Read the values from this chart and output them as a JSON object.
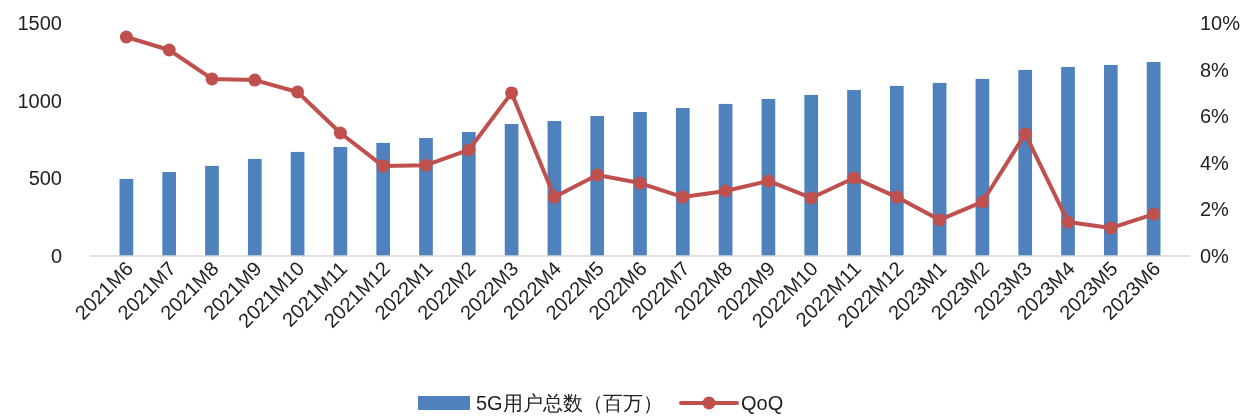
{
  "chart_data": {
    "type": "bar",
    "categories": [
      "2021M6",
      "2021M7",
      "2021M8",
      "2021M9",
      "2021M10",
      "2021M11",
      "2021M12",
      "2022M1",
      "2022M2",
      "2022M3",
      "2022M4",
      "2022M5",
      "2022M6",
      "2022M7",
      "2022M8",
      "2022M9",
      "2022M10",
      "2022M11",
      "2022M12",
      "2023M1",
      "2023M2",
      "2023M3",
      "2023M4",
      "2023M5",
      "2023M6"
    ],
    "series": [
      {
        "name": "5G用户总数（百万）",
        "color": "#4f81bd",
        "values": [
          496,
          541,
          580,
          625,
          670,
          702,
          728,
          760,
          798,
          850,
          869,
          901,
          927,
          953,
          979,
          1011,
          1037,
          1069,
          1095,
          1114,
          1140,
          1198,
          1217,
          1230,
          1249
        ]
      },
      {
        "name": "QoQ",
        "type": "line",
        "axis": "y2",
        "color": "#c0504d",
        "marker": "circle",
        "values": [
          9.4,
          8.84,
          7.6,
          7.55,
          7.04,
          5.28,
          3.86,
          3.9,
          4.55,
          7.0,
          2.53,
          3.48,
          3.13,
          2.53,
          2.79,
          3.22,
          2.49,
          3.35,
          2.53,
          1.55,
          2.32,
          5.24,
          1.46,
          1.2,
          1.8
        ]
      }
    ],
    "ylim": [
      0,
      1500
    ],
    "yticks": [
      0,
      500,
      1000,
      1500
    ],
    "y2lim": [
      0,
      10
    ],
    "y2ticks": [
      {
        "value": 0,
        "label": "0%"
      },
      {
        "value": 2,
        "label": "2%"
      },
      {
        "value": 4,
        "label": "4%"
      },
      {
        "value": 6,
        "label": "6%"
      },
      {
        "value": 8,
        "label": "8%"
      },
      {
        "value": 10,
        "label": "10%"
      }
    ],
    "legend": "bottom",
    "grid": false
  }
}
